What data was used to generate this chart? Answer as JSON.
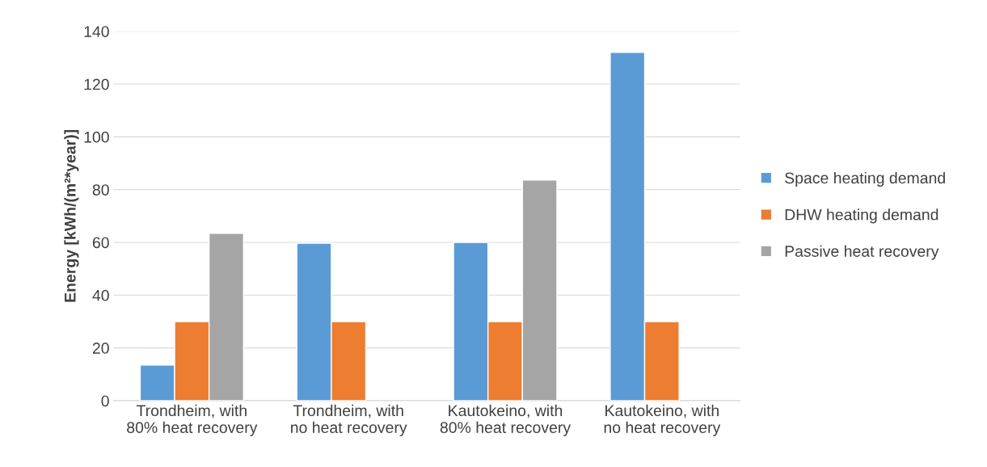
{
  "chart_data": {
    "type": "bar",
    "ylabel": "Energy [kWh/(m²*year)]",
    "categories": [
      "Trondheim, with 80% heat recovery",
      "Trondheim, with no heat recovery",
      "Kautokeino, with 80% heat recovery",
      "Kautokeino, with no heat recovery"
    ],
    "series": [
      {
        "name": "Space heating demand",
        "color": "#5b9bd5",
        "values": [
          13.5,
          59.7,
          60,
          132
        ]
      },
      {
        "name": "DHW heating demand",
        "color": "#ed7d31",
        "values": [
          30,
          30,
          30,
          30
        ]
      },
      {
        "name": "Passive heat recovery",
        "color": "#a5a5a5",
        "values": [
          63.4,
          null,
          83.6,
          null
        ]
      }
    ],
    "ylim": [
      0,
      140
    ],
    "yticks": [
      0,
      20,
      40,
      60,
      80,
      100,
      120,
      140
    ],
    "grid": "y",
    "legend": "right"
  }
}
